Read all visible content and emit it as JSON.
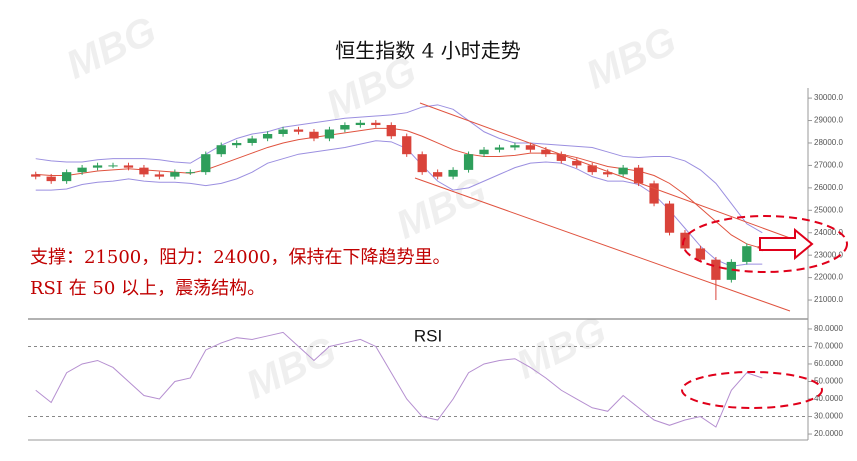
{
  "chart_data": [
    {
      "type": "candlestick",
      "title": "恒生指数 4 小时走势",
      "annotations": [
        "支撑：21500，阻力：24000，保持在下降趋势里。",
        "RSI 在 50 以上，震荡结构。"
      ],
      "watermark": "MBG",
      "up_color": "#2e9e5b",
      "down_color": "#d9433a",
      "open": [
        26600,
        26500,
        26300,
        26700,
        26900,
        27000,
        27000,
        26900,
        26600,
        26500,
        26700,
        26700,
        27500,
        27900,
        28000,
        28200,
        28400,
        28600,
        28500,
        28200,
        28600,
        28800,
        28900,
        28800,
        28300,
        27500,
        26700,
        26500,
        26800,
        27500,
        27700,
        27800,
        27900,
        27700,
        27500,
        27200,
        27000,
        26700,
        26600,
        26900,
        26200,
        25300,
        24000,
        23300,
        22800,
        21900,
        22700,
        23400
      ],
      "high": [
        26720,
        26620,
        26820,
        27020,
        27120,
        27120,
        27120,
        27020,
        26720,
        26820,
        26820,
        27620,
        28020,
        28120,
        28320,
        28520,
        28720,
        28720,
        28620,
        28720,
        28920,
        29020,
        29020,
        28920,
        28420,
        27620,
        26820,
        26920,
        27620,
        27820,
        27920,
        28020,
        28020,
        27820,
        27620,
        27320,
        27120,
        26820,
        27020,
        27020,
        26320,
        25420,
        24120,
        23420,
        22920,
        22820,
        23520,
        23520
      ],
      "low": [
        26380,
        26180,
        26180,
        26580,
        26780,
        26880,
        26780,
        26480,
        26380,
        26380,
        26580,
        26580,
        27380,
        27780,
        27880,
        28080,
        28280,
        28380,
        28080,
        28080,
        28480,
        28680,
        28680,
        28180,
        27380,
        26580,
        26380,
        26380,
        26680,
        27380,
        27580,
        27680,
        27580,
        27380,
        27080,
        26880,
        26580,
        26480,
        26480,
        26080,
        25180,
        23880,
        23180,
        22680,
        21000,
        21780,
        22580,
        23180
      ],
      "close": [
        26500,
        26300,
        26700,
        26900,
        27000,
        27000,
        26900,
        26600,
        26500,
        26700,
        26700,
        27500,
        27900,
        28000,
        28200,
        28400,
        28600,
        28500,
        28200,
        28600,
        28800,
        28900,
        28800,
        28300,
        27500,
        26700,
        26500,
        26800,
        27500,
        27700,
        27800,
        27900,
        27700,
        27500,
        27200,
        27000,
        26700,
        26600,
        26900,
        26200,
        25300,
        24000,
        23300,
        22800,
        21900,
        22700,
        23400,
        23300
      ],
      "overlays": [
        {
          "color": "#e0533f",
          "values": [
            26600,
            26550,
            26550,
            26650,
            26750,
            26800,
            26850,
            26800,
            26750,
            26700,
            26650,
            26800,
            27050,
            27300,
            27550,
            27800,
            28000,
            28150,
            28250,
            28350,
            28450,
            28550,
            28650,
            28650,
            28550,
            28300,
            28000,
            27700,
            27500,
            27400,
            27400,
            27450,
            27550,
            27550,
            27500,
            27350,
            27150,
            26950,
            26850,
            26750,
            26550,
            26200,
            25700,
            25100,
            24500,
            23900,
            23500,
            23300
          ]
        },
        {
          "color": "#9b8fe0",
          "values": [
            27300,
            27200,
            27150,
            27150,
            27250,
            27300,
            27300,
            27300,
            27250,
            27150,
            27100,
            27500,
            27900,
            28200,
            28400,
            28500,
            28700,
            28800,
            28900,
            29000,
            29100,
            29150,
            29200,
            29250,
            29350,
            29600,
            29700,
            29500,
            29000,
            28500,
            28200,
            28000,
            28000,
            27950,
            27900,
            27850,
            27800,
            27600,
            27400,
            27350,
            27400,
            27400,
            27200,
            26800,
            26200,
            25300,
            24400,
            24000
          ]
        },
        {
          "color": "#9b8fe0",
          "values": [
            25900,
            25900,
            25950,
            26150,
            26250,
            26300,
            26400,
            26300,
            26250,
            26250,
            26200,
            26100,
            26200,
            26400,
            26700,
            27100,
            27300,
            27500,
            27600,
            27700,
            27800,
            27950,
            28100,
            28050,
            27750,
            27000,
            26300,
            25900,
            26000,
            26300,
            26600,
            26900,
            27100,
            27150,
            27100,
            26850,
            26500,
            26300,
            26300,
            26150,
            25700,
            25000,
            24200,
            23400,
            22800,
            22500,
            22600,
            22600
          ]
        }
      ],
      "ylim": [
        20200,
        30450
      ],
      "yticks": [
        {
          "value": 21000,
          "label": "21000.0"
        },
        {
          "value": 22000,
          "label": "22000.0"
        },
        {
          "value": 23000,
          "label": "23000.0"
        },
        {
          "value": 24000,
          "label": "24000.0"
        },
        {
          "value": 25000,
          "label": "25000.0"
        },
        {
          "value": 26000,
          "label": "26000.0"
        },
        {
          "value": 27000,
          "label": "27000.0"
        },
        {
          "value": 28000,
          "label": "28000.0"
        },
        {
          "value": 29000,
          "label": "29000.0"
        },
        {
          "value": 30000,
          "label": "30000.0"
        }
      ]
    },
    {
      "type": "line",
      "title": "RSI",
      "color": "#b58fd0",
      "values": [
        45,
        38,
        55,
        60,
        62,
        58,
        50,
        42,
        40,
        50,
        52,
        68,
        72,
        75,
        74,
        76,
        78,
        70,
        62,
        70,
        72,
        74,
        70,
        55,
        40,
        30,
        28,
        40,
        55,
        60,
        62,
        63,
        58,
        52,
        45,
        40,
        35,
        33,
        42,
        35,
        28,
        25,
        28,
        30,
        24,
        45,
        55,
        52
      ],
      "reference_lines": [
        70,
        30
      ],
      "ylim": [
        16.6,
        85.1
      ],
      "yticks": [
        {
          "value": 20,
          "label": "20.0000"
        },
        {
          "value": 30,
          "label": "30.0000"
        },
        {
          "value": 40,
          "label": "40.0000"
        },
        {
          "value": 50,
          "label": "50.0000"
        },
        {
          "value": 60,
          "label": "60.0000"
        },
        {
          "value": 70,
          "label": "70.0000"
        },
        {
          "value": 80,
          "label": "80.0000"
        }
      ]
    }
  ]
}
